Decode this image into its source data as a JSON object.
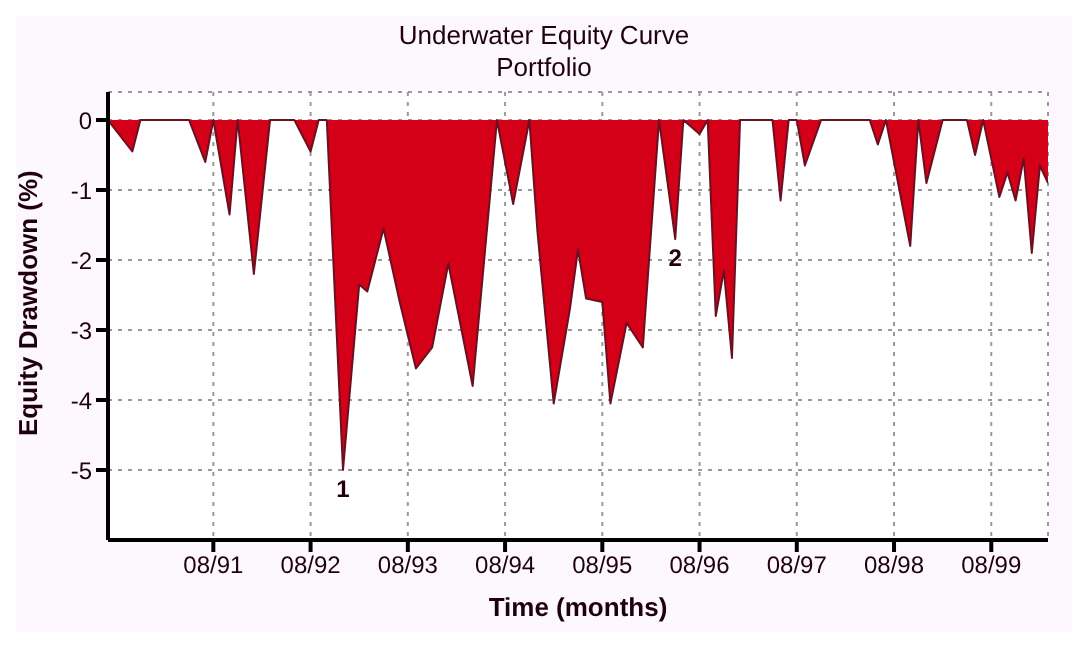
{
  "chart_data": {
    "type": "area",
    "title": "Underwater Equity Curve",
    "subtitle": "Portfolio",
    "xlabel": "Time (months)",
    "ylabel": "Equity Drawdown (%)",
    "x": [
      "1990-07",
      "1990-10",
      "1990-11",
      "1991-05",
      "1991-07",
      "1991-08",
      "1991-10",
      "1991-11",
      "1992-01",
      "1992-03",
      "1992-06",
      "1992-08",
      "1992-09",
      "1992-10",
      "1992-12",
      "1993-02",
      "1993-03",
      "1993-05",
      "1993-07",
      "1993-09",
      "1993-11",
      "1994-01",
      "1994-04",
      "1994-07",
      "1994-09",
      "1994-11",
      "1994-12",
      "1995-02",
      "1995-04",
      "1995-05",
      "1995-06",
      "1995-08",
      "1995-09",
      "1995-11",
      "1996-01",
      "1996-03",
      "1996-05",
      "1996-06",
      "1996-08",
      "1996-09",
      "1996-10",
      "1996-11",
      "1996-12",
      "1997-01",
      "1997-05",
      "1997-06",
      "1997-07",
      "1997-08",
      "1997-09",
      "1997-11",
      "1998-05",
      "1998-06",
      "1998-07",
      "1998-10",
      "1998-11",
      "1998-12",
      "1999-02",
      "1999-05",
      "1999-06",
      "1999-07",
      "1999-09",
      "1999-10",
      "1999-11",
      "1999-12",
      "2000-01",
      "2000-02",
      "2000-03"
    ],
    "series": [
      {
        "color": "#d40018",
        "values": [
          0,
          -0.45,
          0,
          0,
          -0.6,
          0,
          -1.35,
          0,
          -2.2,
          0,
          0,
          -0.45,
          0,
          0,
          -5.0,
          -2.35,
          -2.45,
          -1.55,
          -2.6,
          -3.55,
          -3.25,
          -2.05,
          -3.8,
          0,
          -1.2,
          0,
          -1.6,
          -4.05,
          -2.7,
          -1.85,
          -2.55,
          -2.6,
          -4.05,
          -2.9,
          -3.25,
          0,
          -1.7,
          0,
          -0.2,
          0,
          -2.8,
          -2.15,
          -3.4,
          0,
          0,
          -1.15,
          0,
          0,
          -0.65,
          0,
          0,
          -0.35,
          0,
          -1.8,
          0,
          -0.9,
          0,
          0,
          -0.5,
          0,
          -1.1,
          -0.75,
          -1.15,
          -0.55,
          -1.9,
          -0.65,
          -0.9
        ]
      }
    ],
    "xlim": [
      "1990-07",
      "2000-03"
    ],
    "xticks": [
      {
        "value": "1991-08",
        "label": "08/91"
      },
      {
        "value": "1992-08",
        "label": "08/92"
      },
      {
        "value": "1993-08",
        "label": "08/93"
      },
      {
        "value": "1994-08",
        "label": "08/94"
      },
      {
        "value": "1995-08",
        "label": "08/95"
      },
      {
        "value": "1996-08",
        "label": "08/96"
      },
      {
        "value": "1997-08",
        "label": "08/97"
      },
      {
        "value": "1998-08",
        "label": "08/98"
      },
      {
        "value": "1999-08",
        "label": "08/99"
      }
    ],
    "ylim": [
      -6,
      0.4
    ],
    "yticks": [
      -5,
      -4,
      -3,
      -2,
      -1,
      0
    ],
    "grid": true,
    "annotations": [
      {
        "text": "1",
        "x": "1992-12",
        "y": -5.0
      },
      {
        "text": "2",
        "x": "1996-05",
        "y": -1.7
      }
    ]
  }
}
